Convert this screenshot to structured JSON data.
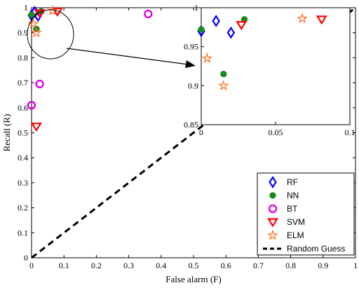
{
  "chart_data": [
    {
      "type": "scatter",
      "xlabel": "False alarm (F)",
      "ylabel": "Recall (R)",
      "xlim": [
        0,
        1
      ],
      "ylim": [
        0,
        1
      ],
      "xticks": [
        "0",
        "0.1",
        "0.2",
        "0.3",
        "0.4",
        "0.5",
        "0.6",
        "0.7",
        "0.8",
        "0.9",
        "1"
      ],
      "yticks": [
        "0",
        "0.1",
        "0.2",
        "0.3",
        "0.4",
        "0.5",
        "0.6",
        "0.7",
        "0.8",
        "0.9",
        "1"
      ],
      "legend_position": "bottom-right",
      "series": [
        {
          "name": "RF",
          "marker": "diamond",
          "color": "#0000ff",
          "points": [
            [
              0.0,
              0.97
            ],
            [
              0.01,
              0.983
            ],
            [
              0.02,
              0.968
            ]
          ]
        },
        {
          "name": "NN",
          "marker": "dot",
          "color": "#1a8a1a",
          "points": [
            [
              0.0,
              0.972
            ],
            [
              0.015,
              0.915
            ],
            [
              0.03,
              0.985
            ]
          ]
        },
        {
          "name": "BT",
          "marker": "circle",
          "color": "#e000e0",
          "points": [
            [
              0.0,
              0.61
            ],
            [
              0.025,
              0.695
            ],
            [
              0.36,
              0.975
            ]
          ]
        },
        {
          "name": "SVM",
          "marker": "triangle-down",
          "color": "#ff0000",
          "points": [
            [
              0.015,
              0.525
            ],
            [
              0.025,
              0.978
            ],
            [
              0.08,
              0.985
            ]
          ]
        },
        {
          "name": "ELM",
          "marker": "star",
          "color": "#ff6a1a",
          "points": [
            [
              0.005,
              0.935
            ],
            [
              0.015,
              0.9
            ],
            [
              0.065,
              0.988
            ]
          ]
        },
        {
          "name": "Random Guess",
          "line": "dashed",
          "color": "#000000",
          "points": [
            [
              0,
              0
            ],
            [
              1,
              1
            ]
          ]
        }
      ]
    },
    {
      "type": "scatter",
      "inset": true,
      "xlim": [
        0,
        0.1
      ],
      "ylim": [
        0.85,
        1
      ],
      "xticks": [
        "0",
        "0.05",
        "0.1"
      ],
      "yticks": [
        "0.85",
        "0.9",
        "0.95",
        "1"
      ],
      "series": [
        {
          "name": "RF",
          "points": [
            [
              0.0,
              0.97
            ],
            [
              0.01,
              0.983
            ],
            [
              0.02,
              0.968
            ]
          ]
        },
        {
          "name": "NN",
          "points": [
            [
              0.0,
              0.972
            ],
            [
              0.015,
              0.915
            ],
            [
              0.029,
              0.985
            ]
          ]
        },
        {
          "name": "SVM",
          "points": [
            [
              0.027,
              0.978
            ],
            [
              0.081,
              0.985
            ]
          ]
        },
        {
          "name": "ELM",
          "points": [
            [
              0.004,
              0.935
            ],
            [
              0.015,
              0.9
            ],
            [
              0.068,
              0.986
            ]
          ]
        }
      ]
    }
  ]
}
